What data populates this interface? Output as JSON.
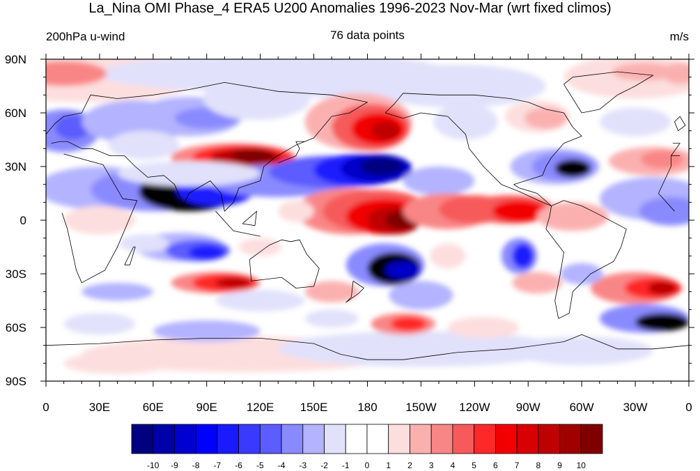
{
  "title": "La_Nina OMI Phase_4 ERA5 U200 Anomalies 1996-2023 Nov-Mar (wrt fixed climos)",
  "left_label": "200hPa u-wind",
  "center_label": "76 data points",
  "right_label": "m/s",
  "lat_labels": [
    "90N",
    "60N",
    "30N",
    "0",
    "30S",
    "60S",
    "90S"
  ],
  "lon_labels": [
    "0",
    "30E",
    "60E",
    "90E",
    "120E",
    "150E",
    "180",
    "150W",
    "120W",
    "90W",
    "60W",
    "30W",
    "0"
  ],
  "colorbar": {
    "colors": [
      "#000080",
      "#0000a8",
      "#0000d0",
      "#0000ff",
      "#1a1aff",
      "#3a3aff",
      "#5c5cff",
      "#8a8aff",
      "#b3b3ff",
      "#e1e1fb",
      "#ffffff",
      "#ffffff",
      "#fddede",
      "#fbb0b0",
      "#f98686",
      "#f75a5a",
      "#ff2828",
      "#f20000",
      "#d80000",
      "#be0000",
      "#a00000",
      "#800000"
    ],
    "labels": [
      "-10",
      "-9",
      "-8",
      "-7",
      "-6",
      "-5",
      "-4",
      "-3",
      "-2",
      "-1",
      "0",
      "1",
      "2",
      "3",
      "4",
      "5",
      "6",
      "7",
      "8",
      "9",
      "10"
    ]
  }
}
